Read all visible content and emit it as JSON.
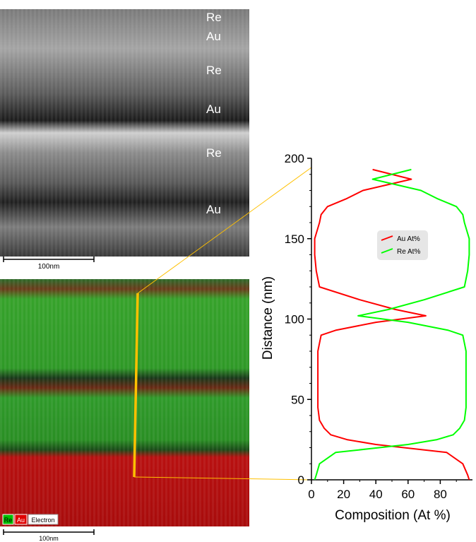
{
  "sem_panel": {
    "layer_labels": [
      "Re",
      "Au",
      "Re",
      "Au",
      "Re",
      "Au"
    ],
    "scale_bar": "100nm"
  },
  "eds_panel": {
    "legend": [
      "Re",
      "Au",
      "Electron"
    ],
    "scale_bar": "100nm"
  },
  "colors": {
    "au": "#ff0000",
    "re": "#00ff00",
    "line_scan": "#ffc000",
    "legend_bg": "#e6e6e6"
  },
  "chart_data": {
    "type": "line",
    "orientation": "composition on x, distance on y",
    "xlabel": "Composition (At %)",
    "ylabel": "Distance (nm)",
    "xlim": [
      0,
      100
    ],
    "ylim": [
      0,
      200
    ],
    "xticks": [
      0,
      20,
      40,
      60,
      80
    ],
    "yticks": [
      0,
      50,
      100,
      150,
      200
    ],
    "legend": "right",
    "series": [
      {
        "name": "Au At%",
        "color": "#ff0000",
        "points": [
          [
            98,
            0
          ],
          [
            97,
            3
          ],
          [
            94,
            10
          ],
          [
            84,
            17
          ],
          [
            40,
            22
          ],
          [
            22,
            25
          ],
          [
            12,
            28
          ],
          [
            8,
            32
          ],
          [
            5,
            37
          ],
          [
            4,
            45
          ],
          [
            4,
            55
          ],
          [
            4,
            65
          ],
          [
            4,
            75
          ],
          [
            4,
            80
          ],
          [
            5,
            85
          ],
          [
            6,
            90
          ],
          [
            15,
            93
          ],
          [
            40,
            98
          ],
          [
            71,
            102
          ],
          [
            52,
            106
          ],
          [
            30,
            112
          ],
          [
            5,
            120
          ],
          [
            3,
            130
          ],
          [
            2,
            140
          ],
          [
            2,
            150
          ],
          [
            5,
            160
          ],
          [
            6,
            165
          ],
          [
            10,
            170
          ],
          [
            22,
            175
          ],
          [
            32,
            180
          ],
          [
            62,
            187
          ],
          [
            38,
            193
          ]
        ]
      },
      {
        "name": "Re At%",
        "color": "#00ff00",
        "points": [
          [
            2,
            0
          ],
          [
            3,
            3
          ],
          [
            5,
            10
          ],
          [
            15,
            17
          ],
          [
            60,
            22
          ],
          [
            78,
            25
          ],
          [
            88,
            28
          ],
          [
            92,
            32
          ],
          [
            95,
            37
          ],
          [
            96,
            45
          ],
          [
            96,
            55
          ],
          [
            96,
            65
          ],
          [
            96,
            75
          ],
          [
            96,
            80
          ],
          [
            95,
            85
          ],
          [
            94,
            90
          ],
          [
            85,
            93
          ],
          [
            60,
            98
          ],
          [
            29,
            102
          ],
          [
            48,
            106
          ],
          [
            70,
            112
          ],
          [
            95,
            120
          ],
          [
            97,
            130
          ],
          [
            98,
            140
          ],
          [
            98,
            150
          ],
          [
            95,
            160
          ],
          [
            94,
            165
          ],
          [
            90,
            170
          ],
          [
            78,
            175
          ],
          [
            68,
            180
          ],
          [
            38,
            187
          ],
          [
            62,
            193
          ]
        ]
      }
    ]
  }
}
